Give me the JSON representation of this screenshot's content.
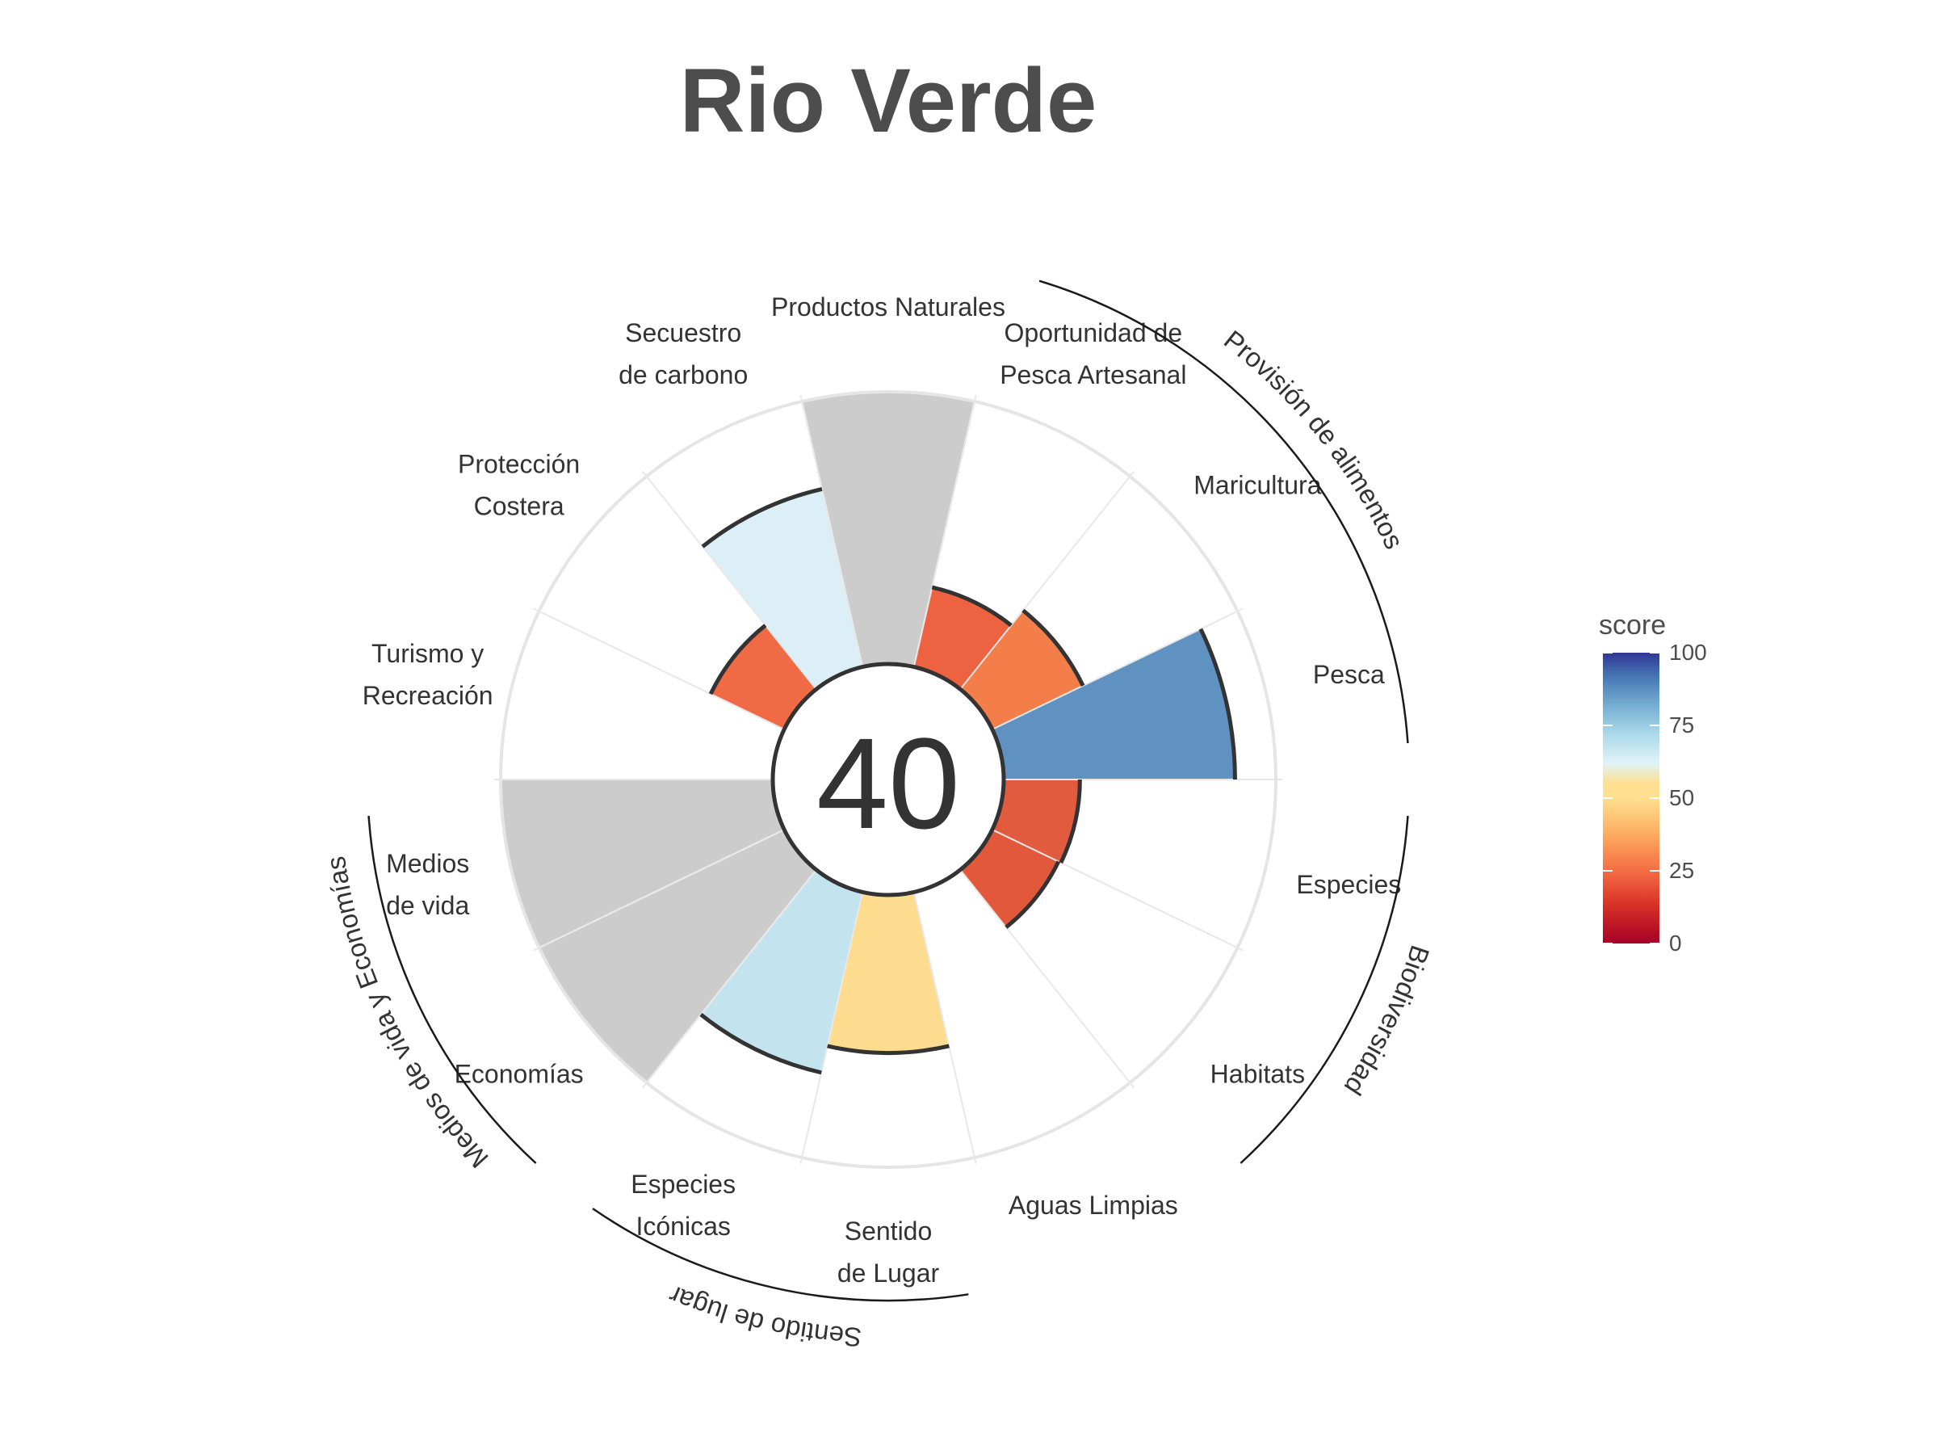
{
  "title": "Rio Verde",
  "center_score": "40",
  "colors": {
    "na_fill": "#cccccc",
    "outer_ring": "#e5e5e5",
    "outline": "#333333"
  },
  "chart_data": {
    "type": "polar-bar",
    "title": "Rio Verde",
    "categories": [
      {
        "name": "Productos Naturales",
        "lines": [
          "Productos Naturales"
        ],
        "score": null,
        "color": "#cccccc"
      },
      {
        "name": "Oportunidad de Pesca Artesanal",
        "lines": [
          "Oportunidad de",
          "Pesca Artesanal"
        ],
        "score": 30,
        "color": "#ed6240"
      },
      {
        "name": "Maricultura",
        "lines": [
          "Maricultura"
        ],
        "score": 37,
        "color": "#f47e4a"
      },
      {
        "name": "Pesca",
        "lines": [
          "Pesca"
        ],
        "score": 85,
        "color": "#5f91c1"
      },
      {
        "name": "Especies",
        "lines": [
          "Especies"
        ],
        "score": 28,
        "color": "#e35b3e"
      },
      {
        "name": "Habitats",
        "lines": [
          "Habitats"
        ],
        "score": 27,
        "color": "#e2583a"
      },
      {
        "name": "Aguas Limpias",
        "lines": [
          "Aguas Limpias"
        ],
        "score": 0,
        "color": "#ffffff"
      },
      {
        "name": "Sentido de Lugar",
        "lines": [
          "Sentido",
          "de Lugar"
        ],
        "score": 58,
        "color": "#fedc8f"
      },
      {
        "name": "Especies Icónicas",
        "lines": [
          "Especies",
          "Icónicas"
        ],
        "score": 68,
        "color": "#c3e3ef"
      },
      {
        "name": "Economías",
        "lines": [
          "Economías"
        ],
        "score": null,
        "color": "#cccccc"
      },
      {
        "name": "Medios de vida",
        "lines": [
          "Medios",
          "de vida"
        ],
        "score": null,
        "color": "#cccccc"
      },
      {
        "name": "Turismo y Recreación",
        "lines": [
          "Turismo y",
          "Recreación"
        ],
        "score": 0,
        "color": "#ffffff"
      },
      {
        "name": "Protección Costera",
        "lines": [
          "Protección",
          "Costera"
        ],
        "score": 30,
        "color": "#f06b45"
      },
      {
        "name": "Secuestro de carbono",
        "lines": [
          "Secuestro",
          "de carbono"
        ],
        "score": 67,
        "color": "#ddeff6"
      }
    ],
    "groups": [
      {
        "label": "Provisión de alimentos",
        "start": 1,
        "end": 3
      },
      {
        "label": "Biodiversidad",
        "start": 4,
        "end": 5
      },
      {
        "label": "Sentido de lugar",
        "start": 7,
        "end": 8
      },
      {
        "label": "Medios de vida y Economías",
        "start": 9,
        "end": 10
      }
    ],
    "legend": {
      "title": "score",
      "ticks": [
        "100",
        "75",
        "50",
        "25",
        "0"
      ],
      "range": [
        0,
        100
      ],
      "placement": "right"
    }
  }
}
